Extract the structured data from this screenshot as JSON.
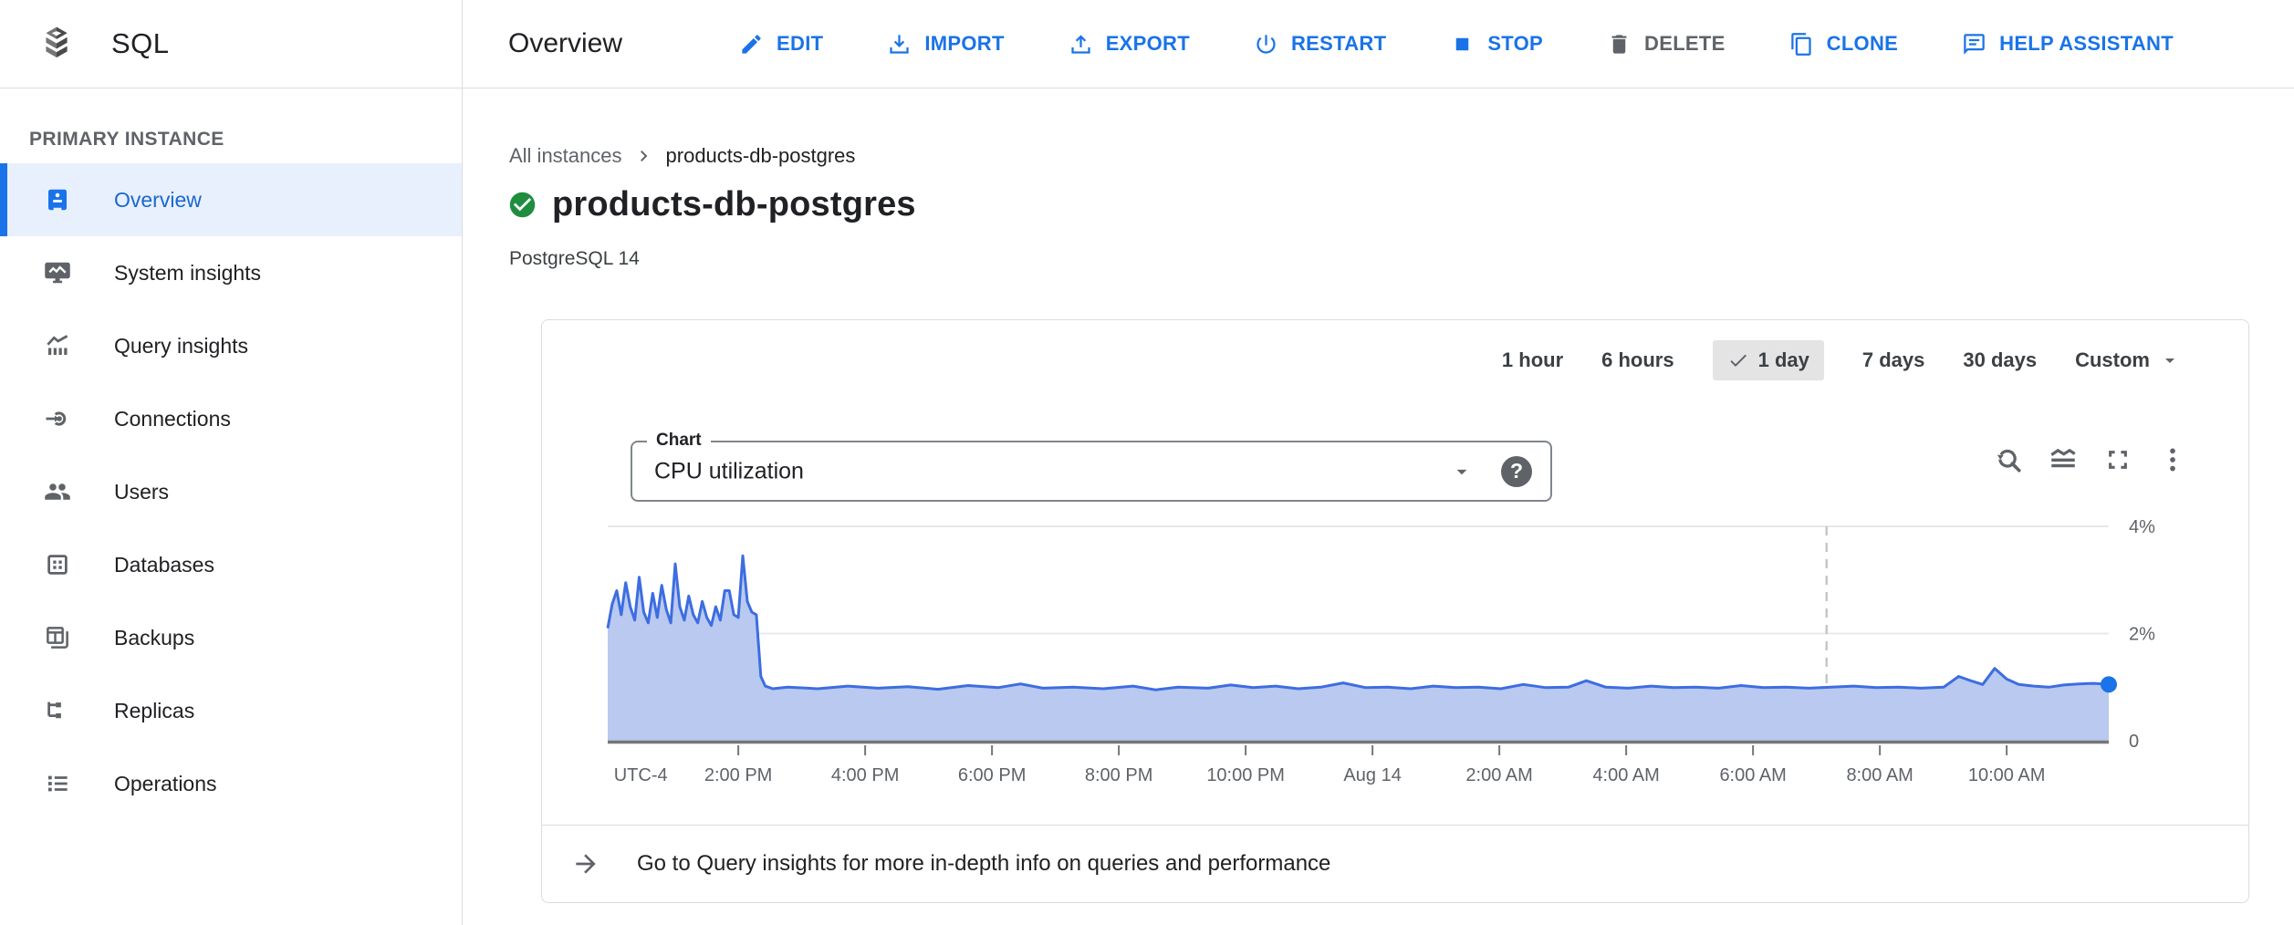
{
  "colors": {
    "accent_blue": "#1a73e8",
    "selected_nav_bg": "#e8f0fe",
    "status_green": "#1e8e3e",
    "text_dark": "#202124",
    "text_gray": "#5f6368"
  },
  "app": {
    "product": "SQL"
  },
  "topbar": {
    "title": "Overview",
    "actions": [
      {
        "label": "EDIT"
      },
      {
        "label": "IMPORT"
      },
      {
        "label": "EXPORT"
      },
      {
        "label": "RESTART"
      },
      {
        "label": "STOP"
      },
      {
        "label": "DELETE",
        "disabled": true
      },
      {
        "label": "CLONE"
      },
      {
        "label": "HELP ASSISTANT"
      }
    ]
  },
  "sidebar": {
    "section": "PRIMARY INSTANCE",
    "items": [
      {
        "label": "Overview",
        "selected": true
      },
      {
        "label": "System insights"
      },
      {
        "label": "Query insights"
      },
      {
        "label": "Connections"
      },
      {
        "label": "Users"
      },
      {
        "label": "Databases"
      },
      {
        "label": "Backups"
      },
      {
        "label": "Replicas"
      },
      {
        "label": "Operations"
      }
    ]
  },
  "main": {
    "breadcrumb": [
      "All instances",
      "products-db-postgres"
    ],
    "title": "products-db-postgres",
    "status": "healthy",
    "subtitle": "PostgreSQL 14"
  },
  "card": {
    "time_ranges": [
      {
        "label": "1 hour"
      },
      {
        "label": "6 hours"
      },
      {
        "label": "1 day",
        "selected": true
      },
      {
        "label": "7 days"
      },
      {
        "label": "30 days"
      },
      {
        "label": "Custom"
      }
    ],
    "chart_select": {
      "label": "Chart",
      "value": "CPU utilization"
    },
    "toolbar_icons": [
      "reset-zoom",
      "area-chart-style",
      "fullscreen",
      "more-options"
    ],
    "footer": {
      "text": "Go to Query insights for more in-depth info on queries and performance"
    }
  },
  "chart_data": {
    "type": "area",
    "title": "CPU utilization",
    "unit": "%",
    "ylim": [
      0,
      4
    ],
    "grid": true,
    "y_ticks": [
      {
        "label": "4%",
        "value": 4
      },
      {
        "label": "2%",
        "value": 2
      },
      {
        "label": "0",
        "value": 0
      }
    ],
    "x_labels": [
      {
        "label": "UTC-4",
        "pos": 0.022,
        "tick": false
      },
      {
        "label": "2:00 PM",
        "pos": 0.087
      },
      {
        "label": "4:00 PM",
        "pos": 0.1715
      },
      {
        "label": "6:00 PM",
        "pos": 0.256
      },
      {
        "label": "8:00 PM",
        "pos": 0.3405
      },
      {
        "label": "10:00 PM",
        "pos": 0.425
      },
      {
        "label": "Aug 14",
        "pos": 0.5095
      },
      {
        "label": "2:00 AM",
        "pos": 0.594
      },
      {
        "label": "4:00 AM",
        "pos": 0.6785
      },
      {
        "label": "6:00 AM",
        "pos": 0.763
      },
      {
        "label": "8:00 AM",
        "pos": 0.8475
      },
      {
        "label": "10:00 AM",
        "pos": 0.932
      }
    ],
    "cursor_line_pos": 0.812,
    "colors": {
      "line": "#3d6de0",
      "fill": "#b9c9ef",
      "dot": "#1a73e8"
    },
    "series": [
      {
        "name": "CPU utilization (%)",
        "points": [
          [
            0.0,
            2.1
          ],
          [
            0.003,
            2.55
          ],
          [
            0.006,
            2.8
          ],
          [
            0.009,
            2.35
          ],
          [
            0.012,
            2.95
          ],
          [
            0.015,
            2.5
          ],
          [
            0.018,
            2.25
          ],
          [
            0.021,
            3.05
          ],
          [
            0.024,
            2.4
          ],
          [
            0.027,
            2.2
          ],
          [
            0.03,
            2.75
          ],
          [
            0.033,
            2.3
          ],
          [
            0.036,
            2.9
          ],
          [
            0.039,
            2.45
          ],
          [
            0.042,
            2.2
          ],
          [
            0.045,
            3.3
          ],
          [
            0.048,
            2.5
          ],
          [
            0.051,
            2.25
          ],
          [
            0.054,
            2.7
          ],
          [
            0.057,
            2.35
          ],
          [
            0.06,
            2.2
          ],
          [
            0.063,
            2.6
          ],
          [
            0.066,
            2.3
          ],
          [
            0.069,
            2.15
          ],
          [
            0.072,
            2.5
          ],
          [
            0.075,
            2.25
          ],
          [
            0.078,
            2.8
          ],
          [
            0.081,
            2.8
          ],
          [
            0.084,
            2.35
          ],
          [
            0.087,
            2.3
          ],
          [
            0.09,
            3.45
          ],
          [
            0.093,
            2.6
          ],
          [
            0.096,
            2.4
          ],
          [
            0.099,
            2.35
          ],
          [
            0.102,
            1.2
          ],
          [
            0.105,
            1.02
          ],
          [
            0.11,
            0.97
          ],
          [
            0.12,
            1.0
          ],
          [
            0.14,
            0.97
          ],
          [
            0.16,
            1.02
          ],
          [
            0.18,
            0.98
          ],
          [
            0.2,
            1.01
          ],
          [
            0.22,
            0.96
          ],
          [
            0.24,
            1.03
          ],
          [
            0.26,
            0.99
          ],
          [
            0.275,
            1.06
          ],
          [
            0.29,
            0.98
          ],
          [
            0.31,
            1.0
          ],
          [
            0.33,
            0.97
          ],
          [
            0.35,
            1.02
          ],
          [
            0.365,
            0.95
          ],
          [
            0.38,
            1.0
          ],
          [
            0.4,
            0.98
          ],
          [
            0.415,
            1.04
          ],
          [
            0.43,
            0.99
          ],
          [
            0.445,
            1.02
          ],
          [
            0.46,
            0.97
          ],
          [
            0.475,
            1.0
          ],
          [
            0.49,
            1.08
          ],
          [
            0.505,
            0.99
          ],
          [
            0.52,
            1.0
          ],
          [
            0.535,
            0.97
          ],
          [
            0.55,
            1.02
          ],
          [
            0.565,
            0.99
          ],
          [
            0.58,
            1.0
          ],
          [
            0.595,
            0.97
          ],
          [
            0.61,
            1.05
          ],
          [
            0.625,
            0.99
          ],
          [
            0.64,
            1.0
          ],
          [
            0.652,
            1.12
          ],
          [
            0.665,
            1.0
          ],
          [
            0.68,
            0.98
          ],
          [
            0.695,
            1.02
          ],
          [
            0.71,
            0.99
          ],
          [
            0.725,
            1.0
          ],
          [
            0.74,
            0.98
          ],
          [
            0.755,
            1.03
          ],
          [
            0.77,
            0.99
          ],
          [
            0.785,
            1.0
          ],
          [
            0.8,
            0.98
          ],
          [
            0.815,
            1.0
          ],
          [
            0.83,
            1.02
          ],
          [
            0.845,
            0.99
          ],
          [
            0.86,
            1.0
          ],
          [
            0.875,
            0.98
          ],
          [
            0.89,
            1.0
          ],
          [
            0.9,
            1.2
          ],
          [
            0.908,
            1.12
          ],
          [
            0.916,
            1.05
          ],
          [
            0.924,
            1.35
          ],
          [
            0.932,
            1.15
          ],
          [
            0.94,
            1.05
          ],
          [
            0.95,
            1.02
          ],
          [
            0.96,
            1.0
          ],
          [
            0.97,
            1.04
          ],
          [
            0.98,
            1.06
          ],
          [
            0.99,
            1.07
          ],
          [
            1.0,
            1.05
          ]
        ]
      }
    ],
    "legend": "none"
  }
}
